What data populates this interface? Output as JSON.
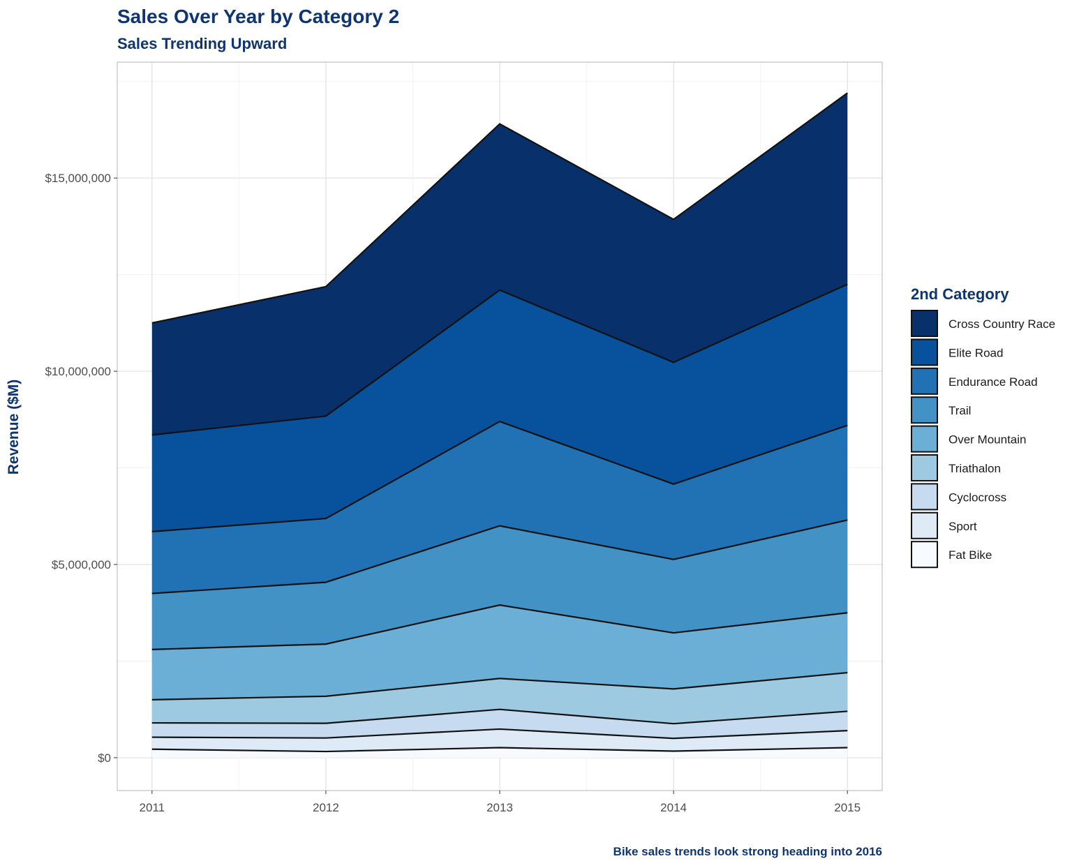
{
  "chart_data": {
    "type": "area",
    "stacked": true,
    "title": "Sales Over Year by Category 2",
    "subtitle": "Sales Trending Upward",
    "caption": "Bike sales trends look strong heading into 2016",
    "xlabel": "",
    "ylabel": "Revenue ($M)",
    "x": [
      2011,
      2012,
      2013,
      2014,
      2015
    ],
    "x_tick_labels": [
      "2011",
      "2012",
      "2013",
      "2014",
      "2015"
    ],
    "y_ticks": [
      0,
      5000000,
      10000000,
      15000000
    ],
    "y_tick_labels": [
      "$0",
      "$5,000,000",
      "$10,000,000",
      "$15,000,000"
    ],
    "xlim": [
      2010.8,
      2015.2
    ],
    "ylim": [
      -850000,
      18000000
    ],
    "grid": true,
    "legend_title": "2nd Category",
    "legend_position": "right",
    "series": [
      {
        "name": "Cross Country Race",
        "color": "#08306b",
        "values": [
          2900000,
          3350000,
          4300000,
          3700000,
          4950000
        ]
      },
      {
        "name": "Elite Road",
        "color": "#08519c",
        "values": [
          2500000,
          2650000,
          3400000,
          3150000,
          3650000
        ]
      },
      {
        "name": "Endurance Road",
        "color": "#2171b5",
        "values": [
          1600000,
          1650000,
          2700000,
          1950000,
          2450000
        ]
      },
      {
        "name": "Trail",
        "color": "#4292c6",
        "values": [
          1450000,
          1600000,
          2050000,
          1900000,
          2400000
        ]
      },
      {
        "name": "Over Mountain",
        "color": "#6baed6",
        "values": [
          1300000,
          1350000,
          1900000,
          1450000,
          1550000
        ]
      },
      {
        "name": "Triathalon",
        "color": "#9ecae1",
        "values": [
          600000,
          700000,
          800000,
          900000,
          1000000
        ]
      },
      {
        "name": "Cyclocross",
        "color": "#c6dbef",
        "values": [
          370000,
          380000,
          510000,
          380000,
          500000
        ]
      },
      {
        "name": "Sport",
        "color": "#deebf7",
        "values": [
          310000,
          350000,
          480000,
          330000,
          440000
        ]
      },
      {
        "name": "Fat Bike",
        "color": "#f7fbff",
        "values": [
          220000,
          160000,
          260000,
          170000,
          260000
        ]
      }
    ]
  }
}
